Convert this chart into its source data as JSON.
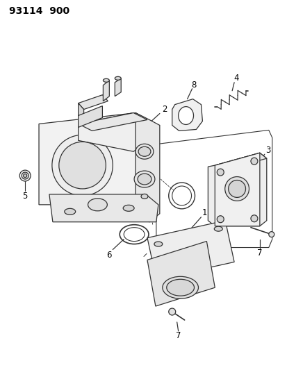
{
  "title": "93114  900",
  "bg_color": "#ffffff",
  "line_color": "#333333",
  "label_color": "#000000",
  "fig_width": 4.14,
  "fig_height": 5.33,
  "dpi": 100
}
